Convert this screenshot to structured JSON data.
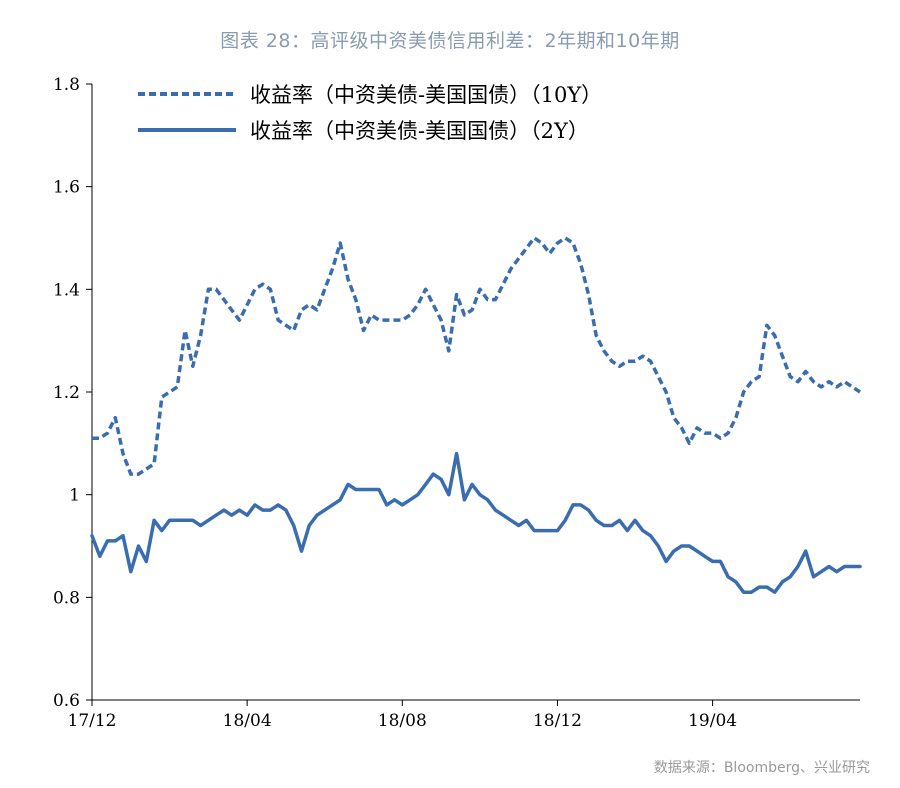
{
  "title": "图表 28：高评级中资美债信用利差：2年期和10年期",
  "source": "数据来源：Bloomberg、兴业研究",
  "chart_data": {
    "type": "line",
    "ylim": [
      0.6,
      1.8
    ],
    "yticks": [
      "1.8",
      "1.6",
      "1.4",
      "1.2",
      "1",
      "0.8",
      "0.6"
    ],
    "ytick_values": [
      1.8,
      1.6,
      1.4,
      1.2,
      1.0,
      0.8,
      0.6
    ],
    "xticks": [
      "17/12",
      "18/04",
      "18/08",
      "18/12",
      "19/04"
    ],
    "xtick_positions": [
      0,
      20,
      40,
      60,
      80
    ],
    "x_count": 100,
    "legend_position": "top",
    "series": [
      {
        "name": "收益率（中资美债-美国国债）（10Y）",
        "style": "dashed",
        "color": "#3a6db0",
        "values": [
          1.11,
          1.11,
          1.12,
          1.15,
          1.08,
          1.04,
          1.04,
          1.05,
          1.06,
          1.19,
          1.2,
          1.21,
          1.32,
          1.25,
          1.31,
          1.4,
          1.4,
          1.38,
          1.36,
          1.34,
          1.37,
          1.4,
          1.41,
          1.4,
          1.34,
          1.33,
          1.32,
          1.36,
          1.37,
          1.36,
          1.4,
          1.44,
          1.49,
          1.42,
          1.38,
          1.32,
          1.35,
          1.34,
          1.34,
          1.34,
          1.34,
          1.35,
          1.37,
          1.4,
          1.37,
          1.34,
          1.28,
          1.39,
          1.35,
          1.36,
          1.4,
          1.38,
          1.38,
          1.41,
          1.44,
          1.46,
          1.48,
          1.5,
          1.49,
          1.47,
          1.49,
          1.5,
          1.49,
          1.45,
          1.39,
          1.31,
          1.28,
          1.26,
          1.25,
          1.26,
          1.26,
          1.27,
          1.26,
          1.23,
          1.2,
          1.15,
          1.13,
          1.1,
          1.13,
          1.12,
          1.12,
          1.11,
          1.12,
          1.15,
          1.2,
          1.22,
          1.23,
          1.33,
          1.31,
          1.27,
          1.23,
          1.22,
          1.24,
          1.22,
          1.21,
          1.22,
          1.21,
          1.22,
          1.21,
          1.2
        ]
      },
      {
        "name": "收益率（中资美债-美国国债）（2Y）",
        "style": "solid",
        "color": "#3a6db0",
        "values": [
          0.92,
          0.88,
          0.91,
          0.91,
          0.92,
          0.85,
          0.9,
          0.87,
          0.95,
          0.93,
          0.95,
          0.95,
          0.95,
          0.95,
          0.94,
          0.95,
          0.96,
          0.97,
          0.96,
          0.97,
          0.96,
          0.98,
          0.97,
          0.97,
          0.98,
          0.97,
          0.94,
          0.89,
          0.94,
          0.96,
          0.97,
          0.98,
          0.99,
          1.02,
          1.01,
          1.01,
          1.01,
          1.01,
          0.98,
          0.99,
          0.98,
          0.99,
          1.0,
          1.02,
          1.04,
          1.03,
          1.0,
          1.08,
          0.99,
          1.02,
          1.0,
          0.99,
          0.97,
          0.96,
          0.95,
          0.94,
          0.95,
          0.93,
          0.93,
          0.93,
          0.93,
          0.95,
          0.98,
          0.98,
          0.97,
          0.95,
          0.94,
          0.94,
          0.95,
          0.93,
          0.95,
          0.93,
          0.92,
          0.9,
          0.87,
          0.89,
          0.9,
          0.9,
          0.89,
          0.88,
          0.87,
          0.87,
          0.84,
          0.83,
          0.81,
          0.81,
          0.82,
          0.82,
          0.81,
          0.83,
          0.84,
          0.86,
          0.89,
          0.84,
          0.85,
          0.86,
          0.85,
          0.86,
          0.86,
          0.86
        ]
      }
    ]
  }
}
